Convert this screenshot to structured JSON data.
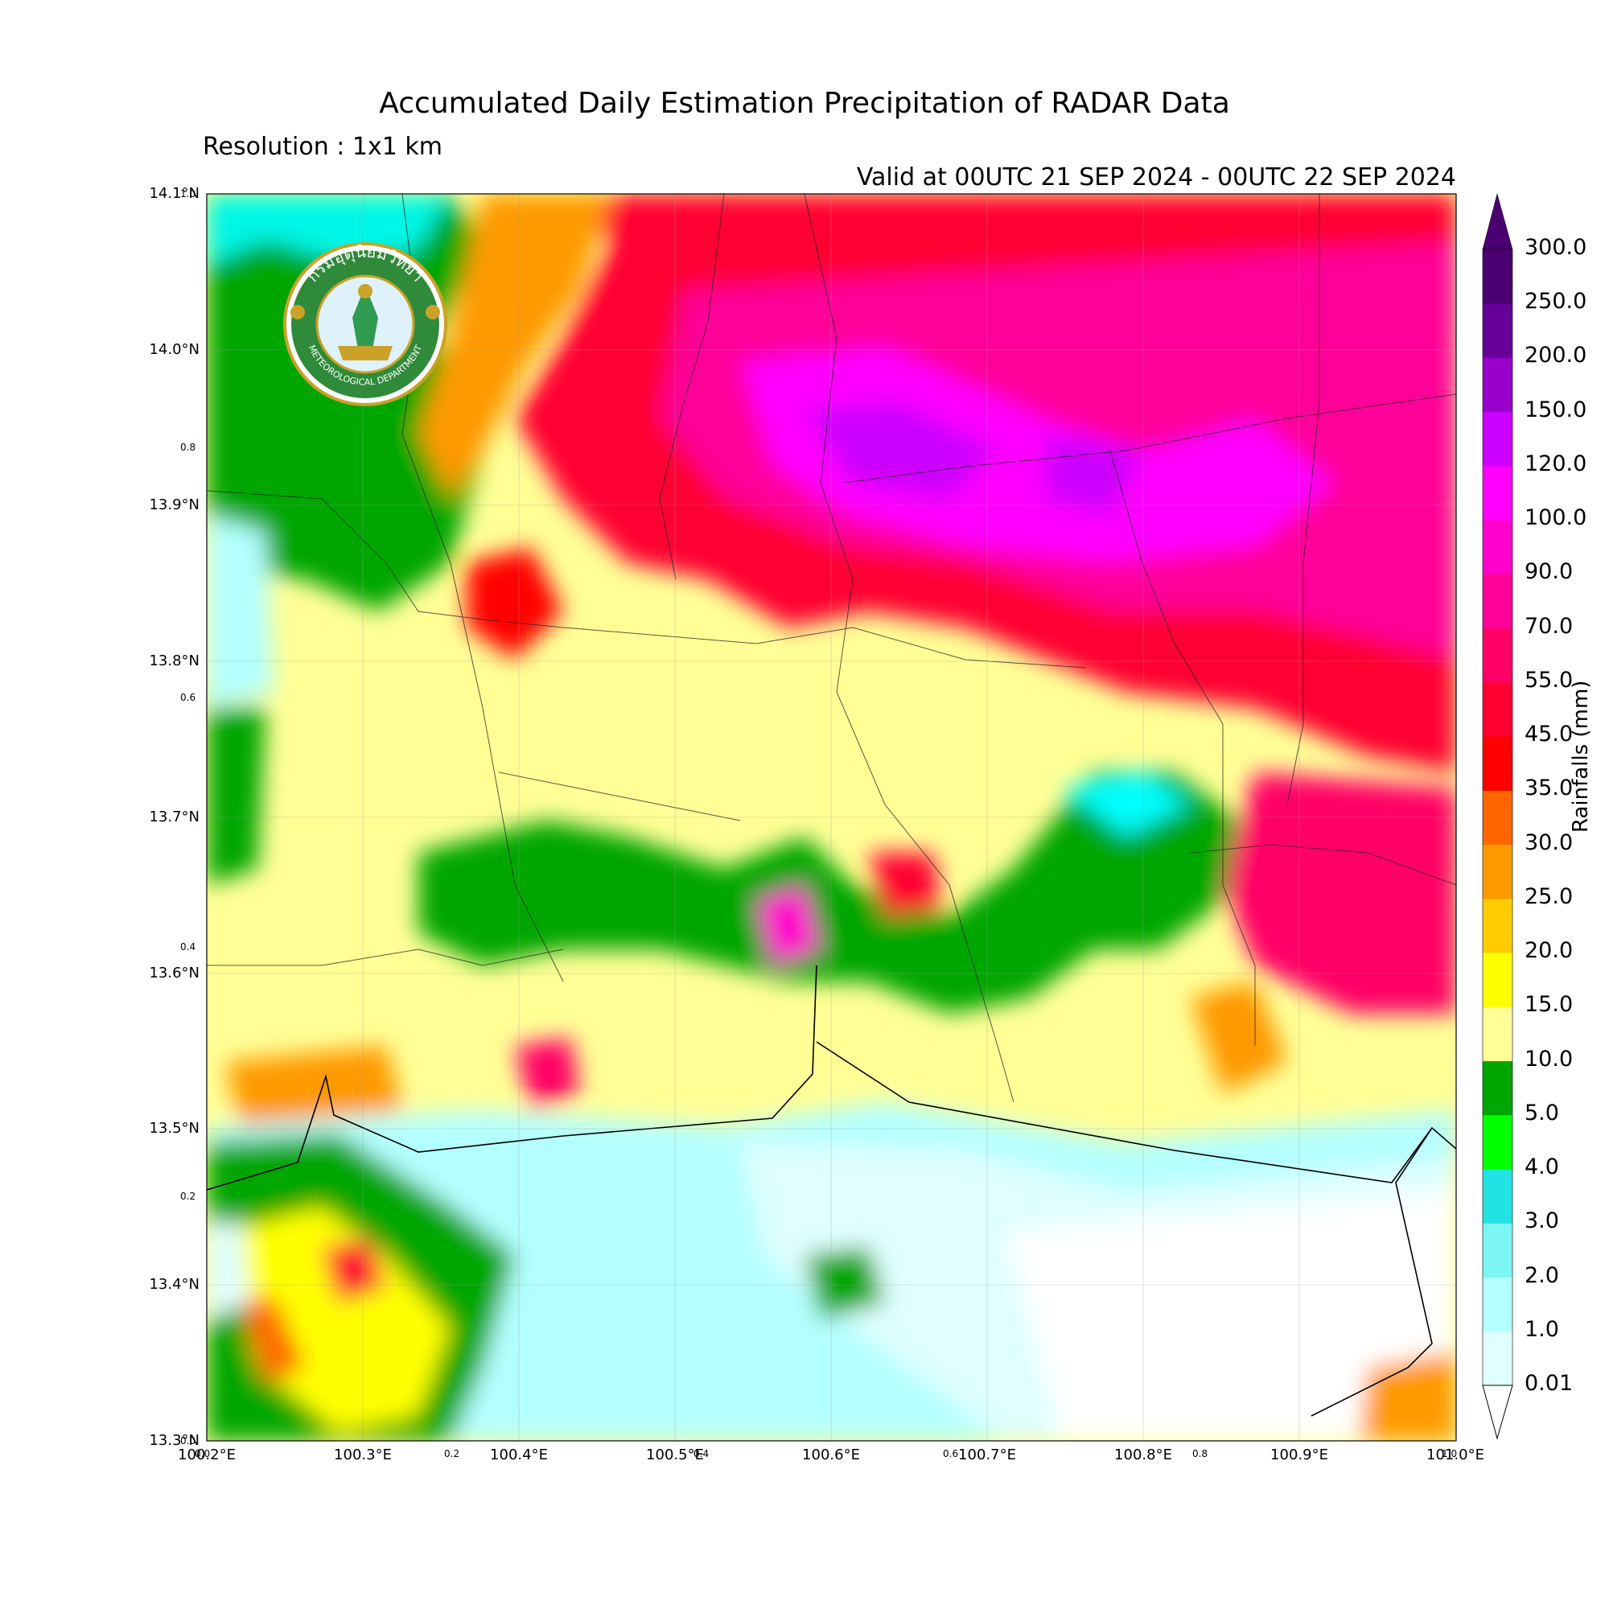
{
  "title": "Accumulated Daily Estimation Precipitation of RADAR Data",
  "resolution": "Resolution : 1x1 km",
  "valid": "Valid at 00UTC 21 SEP 2024 - 00UTC 22 SEP 2024",
  "logo": {
    "org_thai": "กรมอุตุนิยมวิทยา",
    "org_en": "METEOROLOGICAL DEPARTMENT"
  },
  "map": {
    "lat_ticks": [
      "14.1°N",
      "14.0°N",
      "13.9°N",
      "13.8°N",
      "13.7°N",
      "13.6°N",
      "13.5°N",
      "13.4°N",
      "13.3°N"
    ],
    "lon_ticks": [
      "100.2°E",
      "100.3°E",
      "100.4°E",
      "100.5°E",
      "100.6°E",
      "100.7°E",
      "100.8°E",
      "100.9°E",
      "101.0°E"
    ],
    "minor_y": [
      "1.0",
      "0.8",
      "0.6",
      "0.4",
      "0.2",
      "0.0"
    ],
    "minor_x": [
      "0.0",
      "0.2",
      "0.4",
      "0.6",
      "0.8",
      "1.0"
    ],
    "lat_range": [
      13.3,
      14.1
    ],
    "lon_range": [
      100.2,
      101.0
    ]
  },
  "colorbar": {
    "title": "Rainfalls (mm)",
    "levels": [
      "0.01",
      "1.0",
      "2.0",
      "3.0",
      "4.0",
      "5.0",
      "10.0",
      "15.0",
      "20.0",
      "25.0",
      "30.0",
      "35.0",
      "45.0",
      "55.0",
      "70.0",
      "90.0",
      "100.0",
      "120.0",
      "150.0",
      "200.0",
      "250.0",
      "300.0"
    ],
    "colors": [
      "#e0ffff",
      "#b4ffff",
      "#7cf5f5",
      "#22e3e3",
      "#00ff00",
      "#00a600",
      "#ffff96",
      "#ffff00",
      "#ffcc00",
      "#ff9900",
      "#ff6600",
      "#ff0000",
      "#ff0030",
      "#ff0066",
      "#ff0099",
      "#ff00cc",
      "#ff00ff",
      "#cc00ff",
      "#9900cc",
      "#660099",
      "#4a0070"
    ]
  }
}
